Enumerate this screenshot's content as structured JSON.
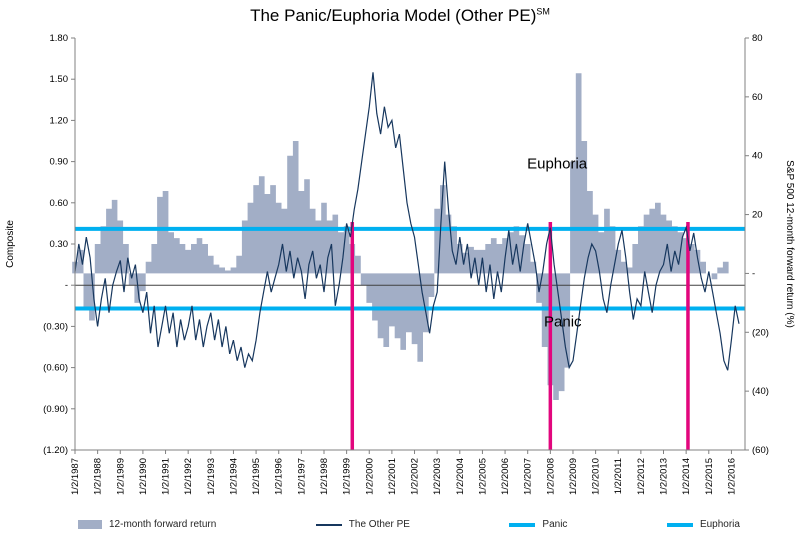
{
  "title": {
    "text": "The Panic/Euphoria Model (Other PE)",
    "superscript": "SM"
  },
  "chart_data": {
    "type": "combo",
    "title": "The Panic/Euphoria Model (Other PE) SM",
    "x_axis": {
      "min": 1987.0,
      "max": 2016.6,
      "tick_labels": [
        "1/2/1987",
        "1/2/1988",
        "1/2/1989",
        "1/2/1990",
        "1/2/1991",
        "1/2/1992",
        "1/2/1993",
        "1/2/1994",
        "1/2/1995",
        "1/2/1996",
        "1/2/1997",
        "1/2/1998",
        "1/2/1999",
        "1/2/2000",
        "1/2/2001",
        "1/2/2002",
        "1/2/2003",
        "1/2/2004",
        "1/2/2005",
        "1/2/2006",
        "1/2/2007",
        "1/2/2008",
        "1/2/2009",
        "1/2/2010",
        "1/2/2011",
        "1/2/2012",
        "1/2/2013",
        "1/2/2014",
        "1/2/2015",
        "1/2/2016"
      ]
    },
    "left_axis": {
      "label": "Composite",
      "min": -1.2,
      "max": 1.8,
      "tick_values": [
        1.8,
        1.5,
        1.2,
        0.9,
        0.6,
        0.3,
        0,
        -0.3,
        -0.6,
        -0.9,
        -1.2
      ],
      "tick_labels": [
        "1.80",
        "1.50",
        "1.20",
        "0.90",
        "0.60",
        "0.30",
        "-",
        "(0.30)",
        "(0.60)",
        "(0.90)",
        "(1.20)"
      ]
    },
    "right_axis": {
      "label": "S&P 500 12-month forward return (%)",
      "min": -60,
      "max": 80,
      "tick_values": [
        80,
        60,
        40,
        20,
        0,
        -20,
        -40,
        -60
      ],
      "tick_labels": [
        "80",
        "60",
        "40",
        "20",
        "-",
        "(20)",
        "(40)",
        "(60)"
      ]
    },
    "reference_lines": {
      "zero_line_color": "#404040",
      "panic": {
        "label": "Panic",
        "value": -0.17,
        "color": "#00b0f0"
      },
      "euphoria": {
        "label": "Euphoria",
        "value": 0.41,
        "color": "#00b0f0"
      }
    },
    "event_lines": {
      "color": "#e2067d",
      "x": [
        1999.25,
        2008.0,
        2014.08
      ],
      "y_top": 0.46
    },
    "annotations": [
      {
        "text": "Euphoria",
        "x": 2008.3,
        "y": 0.85
      },
      {
        "text": "Panic",
        "x": 2008.55,
        "y": -0.3
      }
    ],
    "series": [
      {
        "name": "12-month forward return",
        "render": "area",
        "axis": "right",
        "color": "#a2aec6",
        "x_start": 1987.0,
        "x_step": 0.25,
        "values": [
          4,
          8,
          -12,
          -16,
          10,
          16,
          22,
          25,
          18,
          10,
          -4,
          -10,
          -6,
          4,
          10,
          26,
          28,
          14,
          12,
          10,
          8,
          10,
          12,
          10,
          6,
          3,
          2,
          1,
          2,
          6,
          18,
          24,
          30,
          33,
          27,
          30,
          24,
          22,
          40,
          45,
          28,
          32,
          22,
          18,
          24,
          18,
          20,
          14,
          16,
          10,
          6,
          -4,
          -10,
          -16,
          -22,
          -25,
          -18,
          -22,
          -26,
          -20,
          -24,
          -30,
          -20,
          -8,
          22,
          30,
          20,
          16,
          10,
          7,
          9,
          8,
          8,
          10,
          12,
          10,
          12,
          14,
          16,
          13,
          10,
          4,
          -10,
          -25,
          -38,
          -43,
          -40,
          -32,
          38,
          68,
          45,
          28,
          20,
          14,
          22,
          16,
          8,
          4,
          2,
          10,
          16,
          20,
          22,
          24,
          20,
          18,
          16,
          14,
          12,
          10,
          8,
          4,
          0,
          -2,
          2,
          4
        ]
      },
      {
        "name": "The Other PE",
        "render": "line",
        "axis": "left",
        "color": "#17375e",
        "x_start": 1987.0,
        "x_step": 0.16667,
        "values": [
          0.1,
          0.3,
          0.15,
          0.35,
          0.2,
          -0.1,
          -0.3,
          -0.1,
          0.05,
          -0.2,
          0.0,
          0.1,
          0.18,
          -0.05,
          0.2,
          0.05,
          0.15,
          -0.1,
          -0.2,
          -0.05,
          -0.35,
          -0.15,
          -0.45,
          -0.3,
          -0.15,
          -0.35,
          -0.2,
          -0.45,
          -0.25,
          -0.4,
          -0.3,
          -0.15,
          -0.4,
          -0.25,
          -0.45,
          -0.3,
          -0.2,
          -0.4,
          -0.25,
          -0.45,
          -0.3,
          -0.5,
          -0.4,
          -0.55,
          -0.45,
          -0.6,
          -0.5,
          -0.55,
          -0.4,
          -0.2,
          -0.05,
          0.1,
          -0.05,
          0.05,
          0.15,
          0.3,
          0.1,
          0.25,
          0.05,
          0.2,
          0.1,
          -0.1,
          0.15,
          0.25,
          0.05,
          0.15,
          -0.05,
          0.2,
          0.3,
          -0.15,
          0.0,
          0.2,
          0.45,
          0.35,
          0.55,
          0.7,
          0.9,
          1.1,
          1.3,
          1.55,
          1.25,
          1.1,
          1.3,
          1.15,
          1.2,
          1.0,
          1.1,
          0.85,
          0.6,
          0.45,
          0.35,
          0.15,
          -0.05,
          -0.2,
          -0.35,
          -0.15,
          -0.05,
          0.45,
          0.9,
          0.55,
          0.25,
          0.15,
          0.35,
          0.15,
          0.3,
          0.05,
          0.2,
          0.0,
          0.2,
          -0.05,
          0.15,
          -0.1,
          0.1,
          -0.05,
          0.2,
          0.4,
          0.15,
          0.3,
          0.1,
          0.3,
          0.45,
          0.3,
          0.15,
          -0.05,
          0.1,
          0.3,
          0.42,
          0.15,
          -0.05,
          -0.25,
          -0.45,
          -0.6,
          -0.55,
          -0.35,
          -0.15,
          0.05,
          0.2,
          0.3,
          0.25,
          0.1,
          -0.1,
          -0.2,
          0.0,
          0.15,
          0.3,
          0.4,
          0.2,
          -0.05,
          -0.25,
          -0.1,
          -0.15,
          0.1,
          -0.05,
          -0.2,
          0.0,
          0.1,
          0.15,
          0.3,
          0.1,
          0.25,
          0.15,
          0.35,
          0.42,
          0.25,
          0.38,
          0.2,
          0.05,
          -0.05,
          0.1,
          -0.05,
          -0.2,
          -0.35,
          -0.55,
          -0.62,
          -0.4,
          -0.15,
          -0.28
        ]
      }
    ],
    "legend": [
      {
        "label": "12-month forward return",
        "swatch": "area",
        "color": "#a2aec6"
      },
      {
        "label": "The Other PE",
        "swatch": "line",
        "color": "#17375e"
      },
      {
        "label": "Panic",
        "swatch": "thick-line",
        "color": "#00b0f0"
      },
      {
        "label": "Euphoria",
        "swatch": "thick-line",
        "color": "#00b0f0"
      }
    ]
  }
}
